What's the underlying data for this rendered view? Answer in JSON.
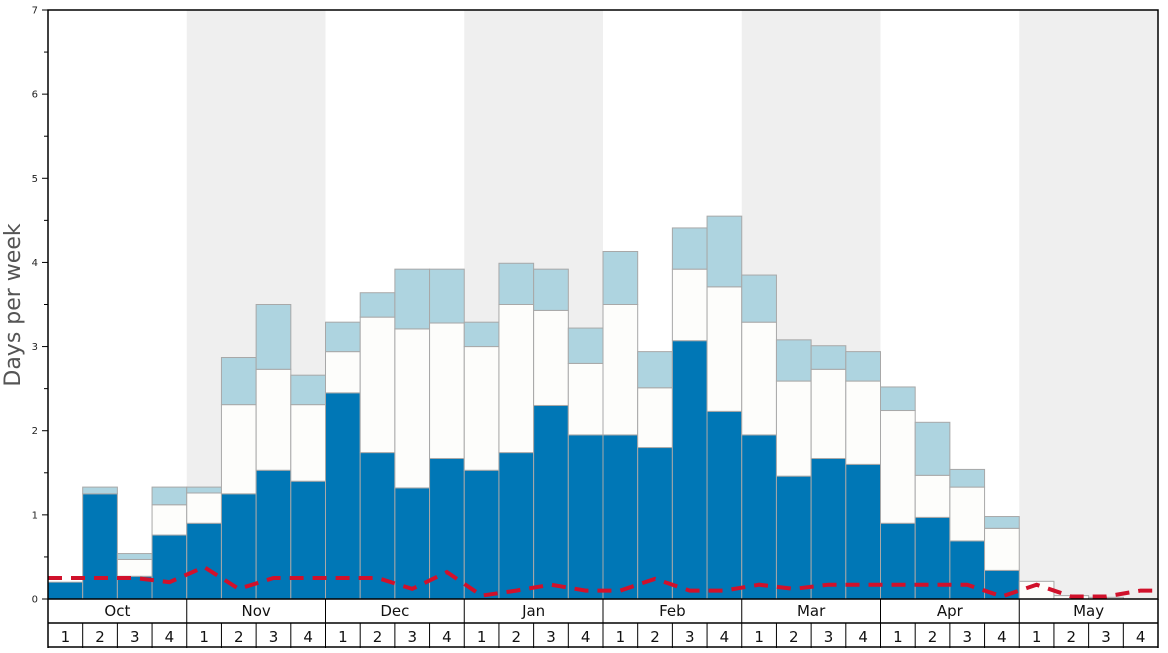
{
  "chart_data": {
    "type": "bar",
    "title": "",
    "xlabel": "",
    "ylabel": "Days per week",
    "ylim": [
      0,
      7
    ],
    "y_ticks": [
      0,
      1,
      2,
      3,
      4,
      5,
      6,
      7
    ],
    "grid": false,
    "legend": "none",
    "months": [
      "Oct",
      "Nov",
      "Dec",
      "Jan",
      "Feb",
      "Mar",
      "Apr",
      "May"
    ],
    "weeks_per_month": [
      "1",
      "2",
      "3",
      "4"
    ],
    "stacking": "stacked",
    "series": [
      {
        "color": "#0077b6",
        "values": [
          0.2,
          1.25,
          0.27,
          0.76,
          0.9,
          1.25,
          1.53,
          1.4,
          2.45,
          1.74,
          1.32,
          1.67,
          1.53,
          1.74,
          2.3,
          1.95,
          1.95,
          1.8,
          3.07,
          2.23,
          1.95,
          1.46,
          1.67,
          1.6,
          0.9,
          0.97,
          0.69,
          0.34,
          0,
          0,
          0,
          0
        ]
      },
      {
        "color": "#fdfdfb",
        "values": [
          0,
          0,
          0.2,
          0.36,
          0.36,
          1.06,
          1.2,
          0.91,
          0.49,
          1.61,
          1.89,
          1.61,
          1.47,
          1.76,
          1.13,
          0.85,
          1.55,
          0.71,
          0.85,
          1.48,
          1.34,
          1.13,
          1.06,
          0.99,
          1.34,
          0.5,
          0.64,
          0.5,
          0.21,
          0.04,
          0.02,
          0
        ]
      },
      {
        "color": "#aed4e0",
        "values": [
          0,
          0.08,
          0.07,
          0.21,
          0.07,
          0.56,
          0.77,
          0.35,
          0.35,
          0.29,
          0.71,
          0.64,
          0.29,
          0.49,
          0.49,
          0.42,
          0.63,
          0.43,
          0.49,
          0.84,
          0.56,
          0.49,
          0.28,
          0.35,
          0.28,
          0.63,
          0.21,
          0.14,
          0,
          0,
          0,
          0
        ]
      },
      {
        "color": "#d0112b",
        "line": "dashed",
        "values": [
          0.25,
          0.25,
          0.25,
          0.2,
          0.38,
          0.12,
          0.25,
          0.25,
          0.25,
          0.25,
          0.12,
          0.32,
          0.04,
          0.1,
          0.17,
          0.1,
          0.1,
          0.24,
          0.1,
          0.1,
          0.17,
          0.12,
          0.17,
          0.17,
          0.17,
          0.17,
          0.17,
          0.03,
          0.17,
          0.03,
          0.03,
          0.1
        ]
      }
    ],
    "colors": {
      "frame": "#000000",
      "alt_band": "#efefef",
      "bar_stroke": "#a8a8a8"
    }
  }
}
